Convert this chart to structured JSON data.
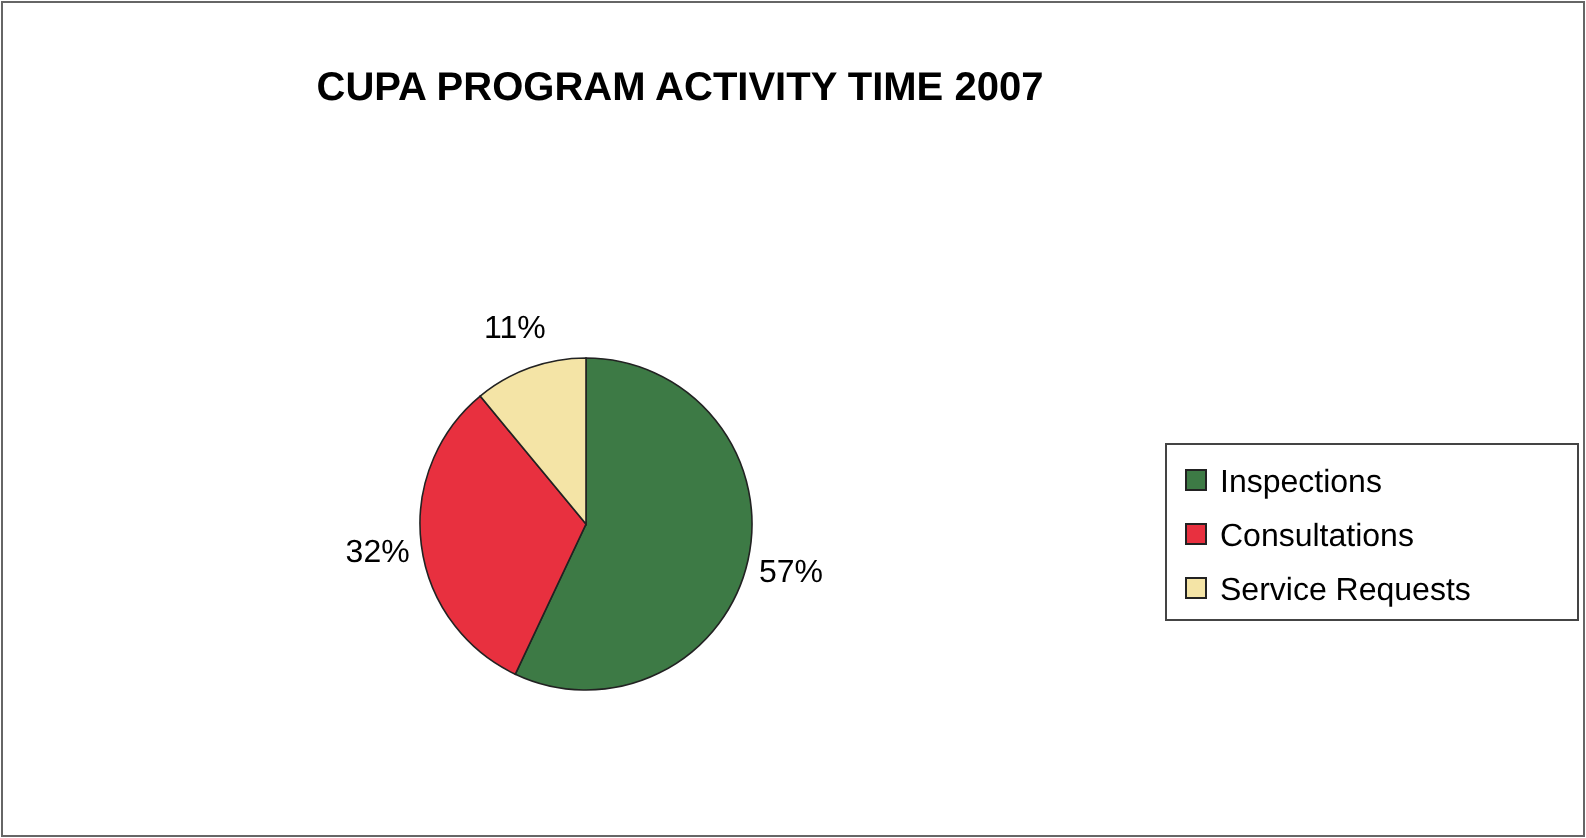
{
  "chart_data": {
    "type": "pie",
    "title": "CUPA PROGRAM ACTIVITY TIME 2007",
    "categories": [
      "Inspections",
      "Consultations",
      "Service Requests"
    ],
    "values": [
      57,
      32,
      11
    ],
    "colors": [
      "#3d7a45",
      "#e8303f",
      "#f4e4a6"
    ],
    "value_labels": [
      "57%",
      "32%",
      "11%"
    ],
    "legend": "right"
  }
}
